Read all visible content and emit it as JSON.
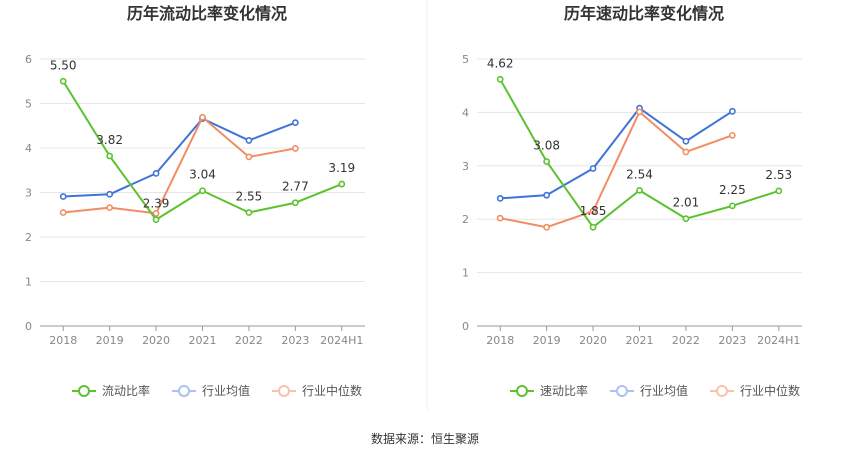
{
  "source_label": "数据来源：恒生聚源",
  "chart_data": [
    {
      "type": "line",
      "title": "历年流动比率变化情况",
      "categories": [
        "2018",
        "2019",
        "2020",
        "2021",
        "2022",
        "2023",
        "2024H1"
      ],
      "ylim": [
        0,
        6
      ],
      "yticks": [
        0,
        1,
        2,
        3,
        4,
        5,
        6
      ],
      "grid": true,
      "legend_position": "bottom",
      "series": [
        {
          "name": "流动比率",
          "color": "#5cc22f",
          "values": [
            5.5,
            3.82,
            2.39,
            3.04,
            2.55,
            2.77,
            3.19
          ],
          "labels": [
            "5.50",
            "3.82",
            "2.39",
            "3.04",
            "2.55",
            "2.77",
            "3.19"
          ]
        },
        {
          "name": "行业均值",
          "color": "#3e74d8",
          "values": [
            2.91,
            2.96,
            3.43,
            4.66,
            4.17,
            4.57,
            null
          ]
        },
        {
          "name": "行业中位数",
          "color": "#f28d63",
          "values": [
            2.55,
            2.66,
            2.53,
            4.69,
            3.8,
            3.99,
            null
          ]
        }
      ]
    },
    {
      "type": "line",
      "title": "历年速动比率变化情况",
      "categories": [
        "2018",
        "2019",
        "2020",
        "2021",
        "2022",
        "2023",
        "2024H1"
      ],
      "ylim": [
        0,
        5
      ],
      "yticks": [
        0,
        1,
        2,
        3,
        4,
        5
      ],
      "grid": true,
      "legend_position": "bottom",
      "series": [
        {
          "name": "速动比率",
          "color": "#5cc22f",
          "values": [
            4.62,
            3.08,
            1.85,
            2.54,
            2.01,
            2.25,
            2.53
          ],
          "labels": [
            "4.62",
            "3.08",
            "1.85",
            "2.54",
            "2.01",
            "2.25",
            "2.53"
          ]
        },
        {
          "name": "行业均值",
          "color": "#3e74d8",
          "values": [
            2.39,
            2.45,
            2.95,
            4.08,
            3.46,
            4.02,
            null
          ]
        },
        {
          "name": "行业中位数",
          "color": "#f28d63",
          "values": [
            2.02,
            1.85,
            2.15,
            4.01,
            3.26,
            3.57,
            null
          ]
        }
      ]
    }
  ]
}
